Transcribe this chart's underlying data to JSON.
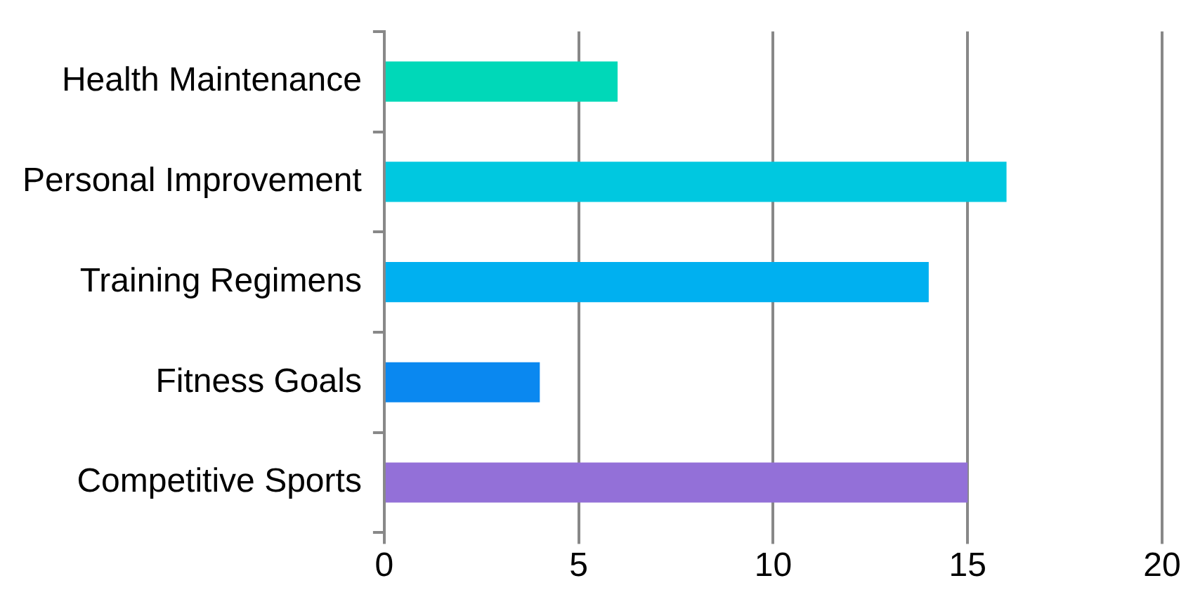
{
  "chart_data": {
    "type": "bar",
    "orientation": "horizontal",
    "categories": [
      "Health Maintenance",
      "Personal Improvement",
      "Training Regimens",
      "Fitness Goals",
      "Competitive Sports"
    ],
    "values": [
      6,
      16,
      14,
      4,
      15
    ],
    "colors": [
      "#00d8b8",
      "#00c8e0",
      "#00b0f0",
      "#0a88f0",
      "#9370d8"
    ],
    "xlim": [
      0,
      20
    ],
    "xticks": [
      0,
      5,
      10,
      15,
      20
    ],
    "grid": "x",
    "legend": false
  }
}
